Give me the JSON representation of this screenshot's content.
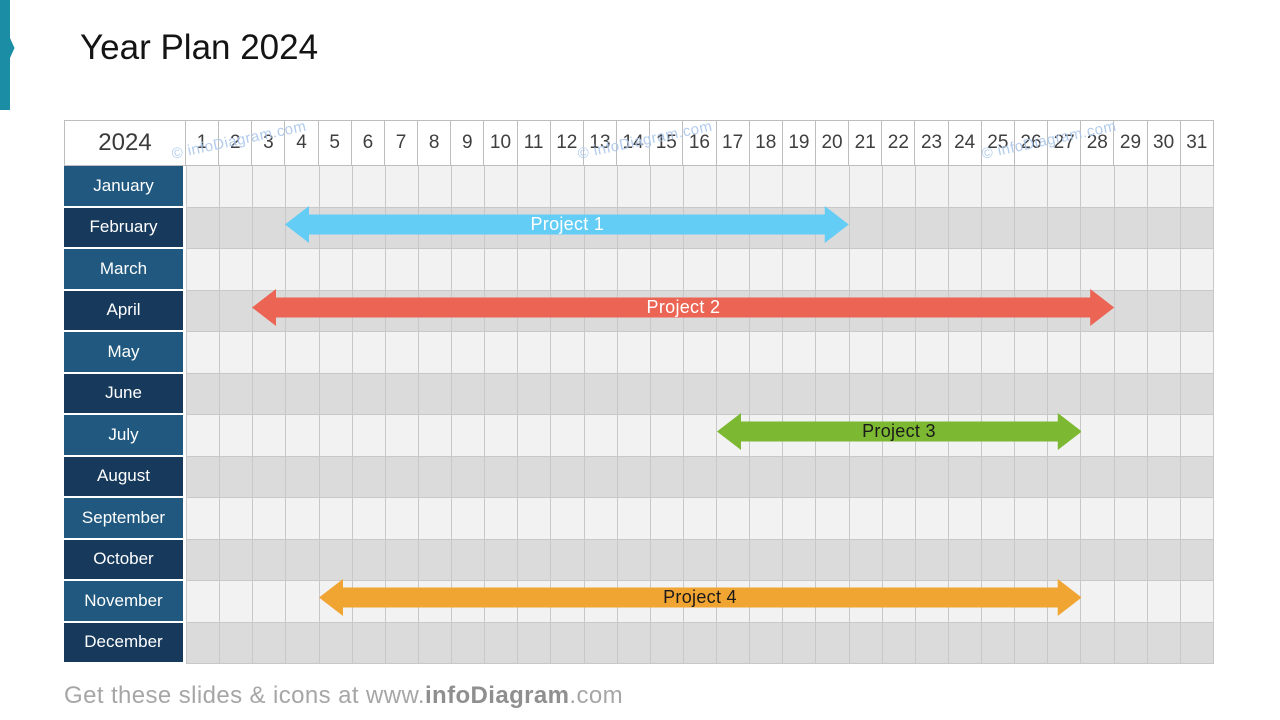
{
  "title": "Year Plan 2024",
  "accent_color": "#1B8DA4",
  "header": {
    "year_label": "2024"
  },
  "chart_data": {
    "type": "bar",
    "subtype": "gantt-year-plan",
    "title": "Year Plan 2024",
    "columns_days": [
      1,
      2,
      3,
      4,
      5,
      6,
      7,
      8,
      9,
      10,
      11,
      12,
      13,
      14,
      15,
      16,
      17,
      18,
      19,
      20,
      21,
      22,
      23,
      24,
      25,
      26,
      27,
      28,
      29,
      30,
      31
    ],
    "rows_months": [
      "January",
      "February",
      "March",
      "April",
      "May",
      "June",
      "July",
      "August",
      "September",
      "October",
      "November",
      "December"
    ],
    "month_cell_colors": [
      "#20587F",
      "#16395C"
    ],
    "row_band_colors": [
      "#F2F2F2",
      "#DBDBDB"
    ],
    "grid_line_color": "#C8C8C8",
    "legend_position": "none",
    "series": [
      {
        "name": "Project 1",
        "month": "February",
        "month_index": 1,
        "start_day": 4,
        "end_day": 20,
        "color": "#63CDF6",
        "label_color": "#FFFFFF"
      },
      {
        "name": "Project 2",
        "month": "April",
        "month_index": 3,
        "start_day": 3,
        "end_day": 28,
        "color": "#EC6453",
        "label_color": "#FFFFFF"
      },
      {
        "name": "Project 3",
        "month": "July",
        "month_index": 6,
        "start_day": 17,
        "end_day": 27,
        "color": "#7CB832",
        "label_color": "#1A1A1A"
      },
      {
        "name": "Project 4",
        "month": "November",
        "month_index": 10,
        "start_day": 5,
        "end_day": 27,
        "color": "#F0A432",
        "label_color": "#1A1A1A"
      }
    ]
  },
  "watermark": {
    "text": "© infoDiagram.com",
    "color": "#AEC9EC"
  },
  "footer": {
    "prefix": "Get these slides & icons at www.",
    "brand": "infoDiagram",
    "suffix": ".com"
  }
}
